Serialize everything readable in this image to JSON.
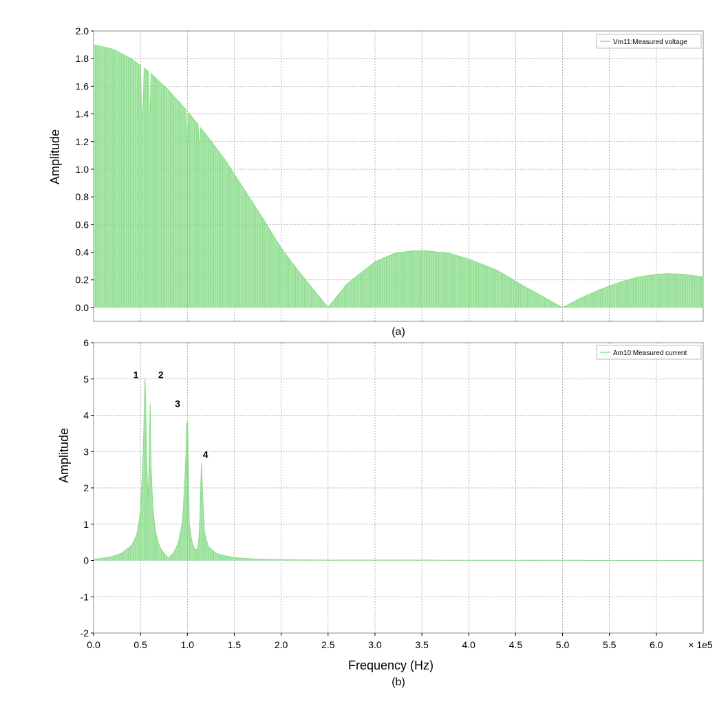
{
  "chart_data": [
    {
      "type": "area",
      "caption": "(a)",
      "xlabel": "",
      "ylabel": "Amplitude",
      "xlim": [
        0,
        650000
      ],
      "ylim": [
        -0.1,
        2.0
      ],
      "x_ticks": [
        0,
        50000,
        100000,
        150000,
        200000,
        250000,
        300000,
        350000,
        400000,
        450000,
        500000,
        550000,
        600000
      ],
      "y_ticks": [
        0.0,
        0.2,
        0.4,
        0.6,
        0.8,
        1.0,
        1.2,
        1.4,
        1.6,
        1.8,
        2.0
      ],
      "y_tick_labels": [
        "0.0",
        "0.2",
        "0.4",
        "0.6",
        "0.8",
        "1.0",
        "1.2",
        "1.4",
        "1.6",
        "1.8",
        "2.0"
      ],
      "grid": true,
      "legend": "top-right",
      "color": "#90e090",
      "series": [
        {
          "name": "Vm11:Measured voltage",
          "x": [
            0,
            20000,
            40000,
            60000,
            80000,
            100000,
            120000,
            140000,
            160000,
            180000,
            200000,
            220000,
            250000,
            270000,
            300000,
            320000,
            340000,
            356000,
            380000,
            400000,
            430000,
            460000,
            500000,
            520000,
            540000,
            560000,
            580000,
            600000,
            612000,
            630000,
            650000
          ],
          "y": [
            1.9,
            1.87,
            1.8,
            1.7,
            1.57,
            1.42,
            1.25,
            1.07,
            0.86,
            0.65,
            0.43,
            0.25,
            0.0,
            0.17,
            0.33,
            0.39,
            0.41,
            0.41,
            0.39,
            0.35,
            0.27,
            0.15,
            0.0,
            0.07,
            0.13,
            0.18,
            0.22,
            0.24,
            0.245,
            0.24,
            0.22
          ]
        }
      ],
      "dips": [
        [
          52000,
          1.45
        ],
        [
          60000,
          1.43
        ],
        [
          100000,
          1.2
        ],
        [
          113000,
          1.18
        ]
      ]
    },
    {
      "type": "area",
      "caption": "(b)",
      "xlabel": "Frequency (Hz)",
      "x_scale_label": "× 1e5",
      "ylabel": "Amplitude",
      "xlim": [
        0,
        650000
      ],
      "ylim": [
        -2,
        6
      ],
      "x_ticks": [
        0,
        50000,
        100000,
        150000,
        200000,
        250000,
        300000,
        350000,
        400000,
        450000,
        500000,
        550000,
        600000
      ],
      "x_tick_labels": [
        "0.0",
        "0.5",
        "1.0",
        "1.5",
        "2.0",
        "2.5",
        "3.0",
        "3.5",
        "4.0",
        "4.5",
        "5.0",
        "5.5",
        "6.0"
      ],
      "y_ticks": [
        -2,
        -1,
        0,
        1,
        2,
        3,
        4,
        5,
        6
      ],
      "y_tick_labels": [
        "-2",
        "-1",
        "0",
        "1",
        "2",
        "3",
        "4",
        "5",
        "6"
      ],
      "grid": true,
      "legend": "top-right",
      "color": "#90e090",
      "series": [
        {
          "name": "Am10:Measured current",
          "x": [
            0,
            10000,
            20000,
            30000,
            40000,
            46000,
            50000,
            53000,
            55000,
            57000,
            59000,
            60000,
            61000,
            63000,
            66000,
            70000,
            75000,
            80000,
            85000,
            90000,
            95000,
            98000,
            100000,
            102000,
            105000,
            108000,
            111000,
            113000,
            115000,
            116000,
            118000,
            122000,
            130000,
            140000,
            150000,
            170000,
            200000,
            250000,
            300000,
            350000,
            400000,
            500000,
            650000
          ],
          "y": [
            0.03,
            0.06,
            0.11,
            0.2,
            0.4,
            0.7,
            1.3,
            3.0,
            5.25,
            2.2,
            1.6,
            5.15,
            2.8,
            1.5,
            0.8,
            0.4,
            0.2,
            0.06,
            0.2,
            0.45,
            1.1,
            2.6,
            4.3,
            1.0,
            0.5,
            0.3,
            0.3,
            0.8,
            2.8,
            2.0,
            0.8,
            0.4,
            0.2,
            0.13,
            0.08,
            0.04,
            0.02,
            0.01,
            0.01,
            0.01,
            0.005,
            0.003,
            0.002
          ]
        }
      ],
      "annotations": [
        {
          "text": "1",
          "x": 54000,
          "y": 5.1
        },
        {
          "text": "2",
          "x": 63000,
          "y": 5.1
        },
        {
          "text": "3",
          "x": 100000,
          "y": 4.3
        },
        {
          "text": "4",
          "x": 115000,
          "y": 2.9
        }
      ]
    }
  ]
}
